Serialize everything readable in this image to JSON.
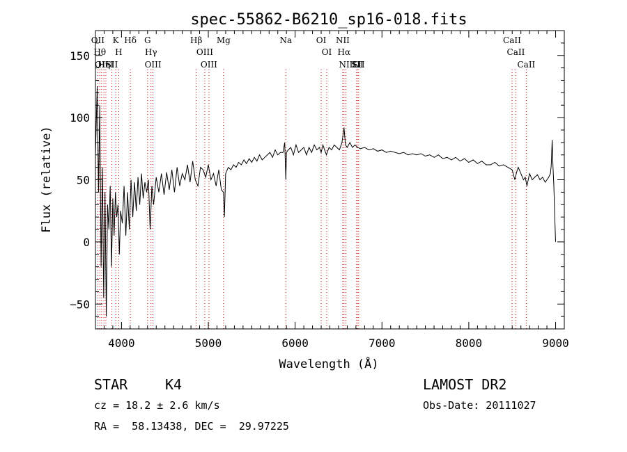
{
  "chart_data": {
    "type": "line",
    "title": "spec-55862-B6210_sp16-018.fits",
    "xlabel": "Wavelength (Å)",
    "ylabel": "Flux (relative)",
    "xlim": [
      3700,
      9100
    ],
    "ylim": [
      -70,
      170
    ],
    "xticks": [
      {
        "v": 4000,
        "label": "4000"
      },
      {
        "v": 5000,
        "label": "5000"
      },
      {
        "v": 6000,
        "label": "6000"
      },
      {
        "v": 7000,
        "label": "7000"
      },
      {
        "v": 8000,
        "label": "8000"
      },
      {
        "v": 9000,
        "label": "9000"
      }
    ],
    "yticks": [
      {
        "v": -50,
        "label": "−50"
      },
      {
        "v": 0,
        "label": "0"
      },
      {
        "v": 50,
        "label": "50"
      },
      {
        "v": 100,
        "label": "100"
      },
      {
        "v": 150,
        "label": "150"
      }
    ],
    "grid": false,
    "series": [
      {
        "x": [
          3700,
          3720,
          3735,
          3750,
          3765,
          3780,
          3795,
          3810,
          3825,
          3840,
          3855,
          3870,
          3885,
          3900,
          3915,
          3930,
          3945,
          3960,
          3975,
          3990,
          4010,
          4030,
          4050,
          4070,
          4090,
          4110,
          4130,
          4150,
          4170,
          4190,
          4210,
          4230,
          4250,
          4270,
          4290,
          4310,
          4330,
          4350,
          4370,
          4400,
          4430,
          4460,
          4490,
          4520,
          4550,
          4580,
          4610,
          4640,
          4670,
          4700,
          4730,
          4760,
          4790,
          4820,
          4850,
          4880,
          4910,
          4940,
          4970,
          5000,
          5030,
          5060,
          5090,
          5120,
          5150,
          5175,
          5185,
          5200,
          5230,
          5260,
          5290,
          5320,
          5350,
          5380,
          5410,
          5440,
          5470,
          5500,
          5530,
          5560,
          5590,
          5620,
          5650,
          5680,
          5710,
          5740,
          5770,
          5800,
          5830,
          5860,
          5880,
          5893,
          5900,
          5920,
          5950,
          5980,
          6010,
          6040,
          6070,
          6100,
          6130,
          6160,
          6190,
          6220,
          6250,
          6280,
          6300,
          6320,
          6340,
          6360,
          6390,
          6420,
          6450,
          6480,
          6510,
          6540,
          6563,
          6580,
          6600,
          6630,
          6660,
          6690,
          6720,
          6750,
          6800,
          6850,
          6900,
          6950,
          7000,
          7050,
          7100,
          7150,
          7200,
          7250,
          7300,
          7350,
          7400,
          7450,
          7500,
          7550,
          7600,
          7650,
          7700,
          7750,
          7800,
          7850,
          7900,
          7950,
          8000,
          8050,
          8100,
          8150,
          8200,
          8250,
          8300,
          8350,
          8400,
          8450,
          8500,
          8530,
          8550,
          8570,
          8600,
          8630,
          8650,
          8670,
          8700,
          8730,
          8760,
          8790,
          8820,
          8850,
          8880,
          8900,
          8920,
          8940,
          8950,
          8960,
          8970,
          8980,
          8990,
          9000
        ],
        "y": [
          70,
          125,
          40,
          110,
          -20,
          60,
          -45,
          40,
          -60,
          30,
          10,
          45,
          -20,
          35,
          5,
          40,
          20,
          30,
          -10,
          25,
          15,
          45,
          5,
          40,
          10,
          50,
          20,
          48,
          25,
          52,
          30,
          55,
          35,
          48,
          40,
          50,
          10,
          45,
          30,
          52,
          40,
          55,
          38,
          56,
          42,
          58,
          40,
          60,
          45,
          55,
          50,
          62,
          48,
          65,
          50,
          45,
          60,
          58,
          52,
          62,
          50,
          55,
          45,
          58,
          42,
          40,
          20,
          55,
          60,
          58,
          62,
          60,
          64,
          62,
          66,
          63,
          67,
          64,
          68,
          65,
          70,
          66,
          68,
          70,
          72,
          68,
          74,
          70,
          72,
          72,
          80,
          50,
          72,
          74,
          76,
          70,
          78,
          72,
          74,
          76,
          70,
          76,
          72,
          78,
          74,
          76,
          72,
          78,
          74,
          70,
          76,
          74,
          78,
          76,
          74,
          80,
          92,
          78,
          76,
          80,
          76,
          78,
          76,
          75,
          76,
          74,
          75,
          73,
          74,
          72,
          73,
          72,
          71,
          72,
          70,
          71,
          70,
          71,
          69,
          70,
          68,
          70,
          67,
          68,
          66,
          68,
          65,
          67,
          64,
          66,
          63,
          65,
          62,
          62,
          64,
          61,
          62,
          60,
          58,
          50,
          56,
          60,
          55,
          50,
          52,
          45,
          55,
          50,
          52,
          54,
          50,
          52,
          48,
          50,
          52,
          55,
          62,
          82,
          60,
          45,
          20,
          0
        ]
      }
    ],
    "lines": [
      {
        "x": 3727,
        "labels": [
          "OII"
        ]
      },
      {
        "x": 3750,
        "labels": [
          "Hθ"
        ]
      },
      {
        "x": 3771,
        "labels": [
          "OII"
        ]
      },
      {
        "x": 3798,
        "labels": [
          "Hη"
        ]
      },
      {
        "x": 3820,
        "labels": [
          "HeI"
        ]
      },
      {
        "x": 3889,
        "labels": [
          "SII"
        ]
      },
      {
        "x": 3934,
        "labels": [
          "K"
        ]
      },
      {
        "x": 3968,
        "labels": [
          "H"
        ]
      },
      {
        "x": 4102,
        "labels": [
          "Hδ"
        ]
      },
      {
        "x": 4300,
        "labels": [
          "G"
        ]
      },
      {
        "x": 4340,
        "labels": [
          "Hγ"
        ]
      },
      {
        "x": 4363,
        "labels": [
          "OIII"
        ]
      },
      {
        "x": 4861,
        "labels": [
          "Hβ"
        ]
      },
      {
        "x": 4959,
        "labels": [
          "OIII"
        ]
      },
      {
        "x": 5007,
        "labels": [
          "OIII"
        ]
      },
      {
        "x": 5175,
        "labels": [
          "Mg"
        ]
      },
      {
        "x": 5893,
        "labels": [
          "Na"
        ]
      },
      {
        "x": 6300,
        "labels": [
          "OI"
        ]
      },
      {
        "x": 6364,
        "labels": [
          "OI"
        ]
      },
      {
        "x": 6548,
        "labels": [
          "NII"
        ]
      },
      {
        "x": 6563,
        "labels": [
          "Hα"
        ]
      },
      {
        "x": 6584,
        "labels": [
          "NII"
        ]
      },
      {
        "x": 6708,
        "labels": [
          "Li"
        ]
      },
      {
        "x": 6716,
        "labels": [
          "SII"
        ]
      },
      {
        "x": 6731,
        "labels": [
          "SII"
        ]
      },
      {
        "x": 8498,
        "labels": [
          "CaII"
        ]
      },
      {
        "x": 8542,
        "labels": [
          "CaII"
        ]
      },
      {
        "x": 8662,
        "labels": [
          "CaII"
        ]
      }
    ]
  },
  "info": {
    "object_class": "STAR",
    "subclass": "K4",
    "cz": "cz = 18.2 ± 2.6 km/s",
    "coords": "RA =  58.13438, DEC =  29.97225",
    "survey": "LAMOST DR2",
    "obs_date": "Obs-Date: 20111027"
  }
}
